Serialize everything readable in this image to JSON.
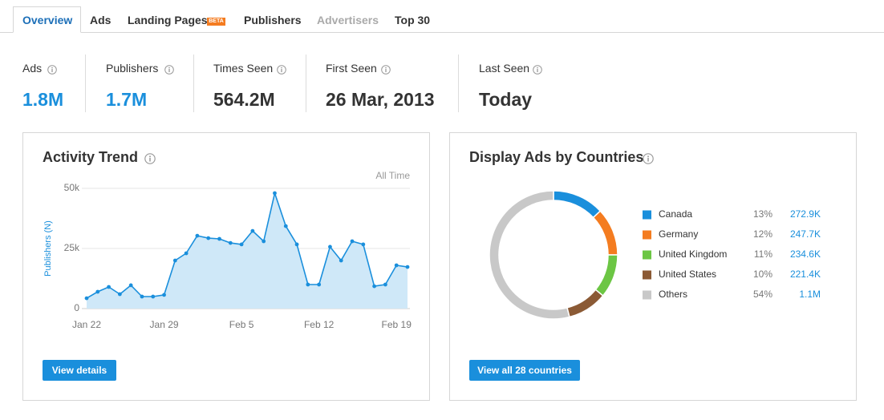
{
  "tabs": [
    {
      "label": "Overview"
    },
    {
      "label": "Ads"
    },
    {
      "label": "Landing Pages",
      "badge": "BETA"
    },
    {
      "label": "Publishers"
    },
    {
      "label": "Advertisers"
    },
    {
      "label": "Top 30"
    }
  ],
  "stats": [
    {
      "label": "Ads",
      "value": "1.8M"
    },
    {
      "label": "Publishers",
      "value": "1.7M"
    },
    {
      "label": "Times Seen",
      "value": "564.2M"
    },
    {
      "label": "First Seen",
      "value": "26 Mar, 2013"
    },
    {
      "label": "Last Seen",
      "value": "Today"
    }
  ],
  "activity_panel": {
    "range": "All Time",
    "button": "View details"
  },
  "countries_panel": {
    "button": "View all 28 countries"
  },
  "chart_data": [
    {
      "type": "area",
      "title": "Activity Trend",
      "y_label": "Publishers (N)",
      "color": "#1a8fdc",
      "fill": "#cfe8f8",
      "categories": [
        "Jan 22",
        null,
        null,
        null,
        null,
        null,
        null,
        "Jan 29",
        null,
        null,
        null,
        null,
        null,
        null,
        "Feb 5",
        null,
        null,
        null,
        null,
        null,
        null,
        "Feb 12",
        null,
        null,
        null,
        null,
        null,
        null,
        "Feb 19",
        null
      ],
      "values": [
        4300,
        7000,
        9000,
        6000,
        9700,
        5000,
        5000,
        5700,
        20000,
        23000,
        30300,
        29300,
        29000,
        27300,
        26700,
        32300,
        28000,
        48000,
        34300,
        26700,
        10000,
        10000,
        25700,
        20000,
        28000,
        26700,
        9300,
        10000,
        18000,
        17300
      ],
      "ylim": [
        0,
        50000
      ],
      "yticks": [
        0,
        {
          "value": 25000,
          "label": "25k"
        },
        {
          "value": 50000,
          "label": "50k"
        }
      ],
      "grid": true
    },
    {
      "type": "donut",
      "title": "Display Ads by Countries",
      "categories": [
        "Canada",
        "Germany",
        "United Kingdom",
        "United States",
        "Others"
      ],
      "values": [
        13,
        12,
        11,
        10,
        54
      ],
      "value_labels": [
        "13%",
        "12%",
        "11%",
        "10%",
        "54%"
      ],
      "counts": [
        272900,
        247700,
        234600,
        221400,
        1100000
      ],
      "count_labels": [
        "272.9K",
        "247.7K",
        "234.6K",
        "221.4K",
        "1.1M"
      ],
      "colors": [
        "#1a8fdc",
        "#f47c20",
        "#6cc644",
        "#8b5a35",
        "#c8c8c8"
      ]
    }
  ]
}
